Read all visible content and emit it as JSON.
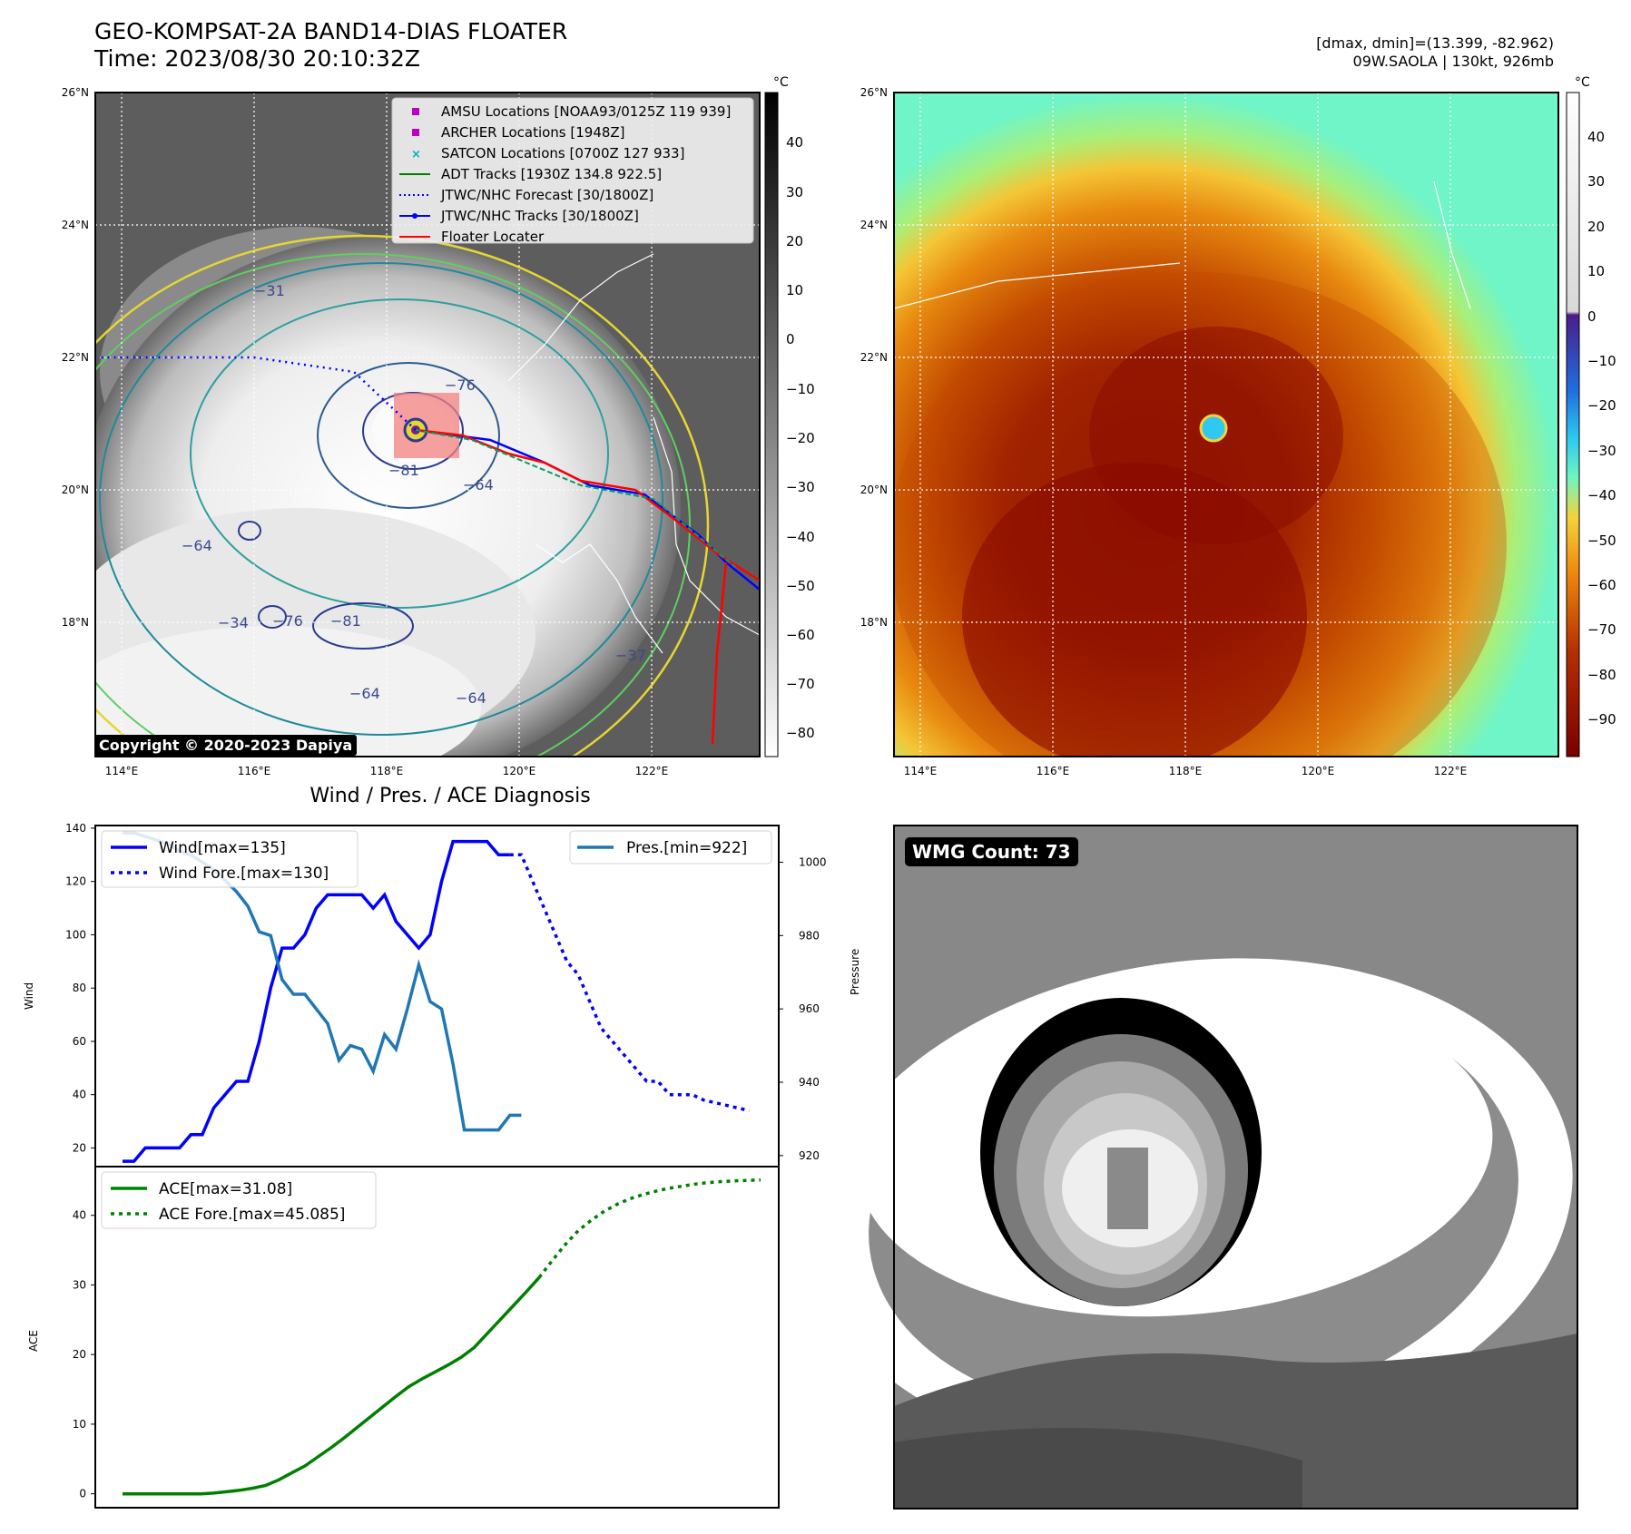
{
  "header": {
    "title_line1": "GEO-KOMPSAT-2A BAND14-DIAS FLOATER",
    "title_line2": "Time: 2023/08/30 20:10:32Z",
    "info_line1": "[dmax, dmin]=(13.399, -82.962)",
    "info_line2": "09W.SAOLA | 130kt, 926mb"
  },
  "map_common": {
    "lat_ticks": [
      "26°N",
      "24°N",
      "22°N",
      "20°N",
      "18°N"
    ],
    "lon_ticks": [
      "114°E",
      "116°E",
      "118°E",
      "120°E",
      "122°E"
    ]
  },
  "ir_map": {
    "colorbar_unit": "°C",
    "colorbar_ticks": [
      "40",
      "30",
      "20",
      "10",
      "0",
      "−10",
      "−20",
      "−30",
      "−40",
      "−50",
      "−60",
      "−70",
      "−80"
    ],
    "legend": [
      {
        "label": "AMSU Locations [NOAA93/0125Z 119 939]",
        "marker": "square",
        "color": "#c000c0"
      },
      {
        "label": "ARCHER Locations [1948Z]",
        "marker": "square",
        "color": "#c000c0"
      },
      {
        "label": "SATCON Locations [0700Z 127 933]",
        "marker": "x",
        "color": "#00b3b3"
      },
      {
        "label": "ADT Tracks [1930Z 134.8 922.5]",
        "marker": "line",
        "color": "#008000"
      },
      {
        "label": "JTWC/NHC Forecast [30/1800Z]",
        "marker": "dotted",
        "color": "#0000ff"
      },
      {
        "label": "JTWC/NHC Tracks [30/1800Z]",
        "marker": "line-dot",
        "color": "#0000ff"
      },
      {
        "label": "Floater Locater",
        "marker": "line",
        "color": "#ff0000"
      }
    ],
    "contour_labels": [
      "−76",
      "−81",
      "−64",
      "−64",
      "−76",
      "−81",
      "−34",
      "−31",
      "−64",
      "−37",
      "−64"
    ],
    "copyright": "Copyright © 2020-2023 Dapiya"
  },
  "color_map": {
    "colorbar_unit": "°C",
    "colorbar_ticks": [
      "40",
      "30",
      "20",
      "10",
      "0",
      "−10",
      "−20",
      "−30",
      "−40",
      "−50",
      "−60",
      "−70",
      "−80",
      "−90"
    ]
  },
  "wmg": {
    "label": "WMG Count: 73"
  },
  "chart_data": [
    {
      "type": "line",
      "title": "Wind / Pres. / ACE Diagnosis",
      "ylabel": "Wind",
      "ylim": [
        13,
        141
      ],
      "yticks": [
        20,
        40,
        60,
        80,
        100,
        120,
        140
      ],
      "y2label": "Pressure",
      "y2lim": [
        917,
        1010
      ],
      "y2ticks": [
        920,
        940,
        960,
        980,
        1000
      ],
      "series": [
        {
          "name": "Wind[max=135]",
          "axis": "left",
          "style": "solid",
          "color": "#0000ff",
          "values": [
            15,
            15,
            20,
            20,
            20,
            20,
            25,
            25,
            35,
            40,
            45,
            45,
            60,
            80,
            95,
            95,
            100,
            110,
            115,
            115,
            115,
            115,
            110,
            115,
            105,
            100,
            95,
            100,
            120,
            135,
            135,
            135,
            135,
            130,
            130
          ]
        },
        {
          "name": "Wind Fore.[max=130]",
          "axis": "left",
          "style": "dotted",
          "color": "#0000ff",
          "x_start": 34,
          "values": [
            130,
            130,
            120,
            110,
            100,
            90,
            85,
            75,
            65,
            60,
            55,
            50,
            45,
            45,
            40,
            40,
            40,
            38,
            37,
            36,
            35,
            34
          ]
        },
        {
          "name": "Pres.[min=922]",
          "axis": "right",
          "style": "solid",
          "color": "#1f77b4",
          "values": [
            1008,
            1008,
            1007,
            1006,
            1005,
            1003,
            1002,
            1000,
            998,
            995,
            992,
            988,
            981,
            980,
            968,
            964,
            964,
            960,
            956,
            946,
            950,
            949,
            943,
            953,
            949,
            960,
            972,
            962,
            960,
            945,
            927,
            927,
            927,
            927,
            931,
            931
          ]
        }
      ]
    },
    {
      "type": "line",
      "ylabel": "ACE",
      "ylim": [
        -2,
        47
      ],
      "yticks": [
        0,
        10,
        20,
        30,
        40
      ],
      "series": [
        {
          "name": "ACE[max=31.08]",
          "style": "solid",
          "color": "#008000",
          "values": [
            0,
            0,
            0,
            0,
            0,
            0,
            0,
            0.1,
            0.3,
            0.5,
            0.8,
            1.2,
            2,
            3,
            4,
            5.3,
            6.6,
            8,
            9.5,
            11,
            12.5,
            14,
            15.4,
            16.5,
            17.5,
            18.5,
            19.6,
            21,
            23,
            25,
            27,
            29,
            31.08
          ]
        },
        {
          "name": "ACE Fore.[max=45.085]",
          "style": "dotted",
          "color": "#008000",
          "x_start": 32,
          "values": [
            31.08,
            33.5,
            35.8,
            37.8,
            39.3,
            40.6,
            41.6,
            42.4,
            43,
            43.5,
            43.9,
            44.2,
            44.5,
            44.7,
            44.85,
            44.95,
            45.02,
            45.085
          ]
        }
      ]
    }
  ]
}
